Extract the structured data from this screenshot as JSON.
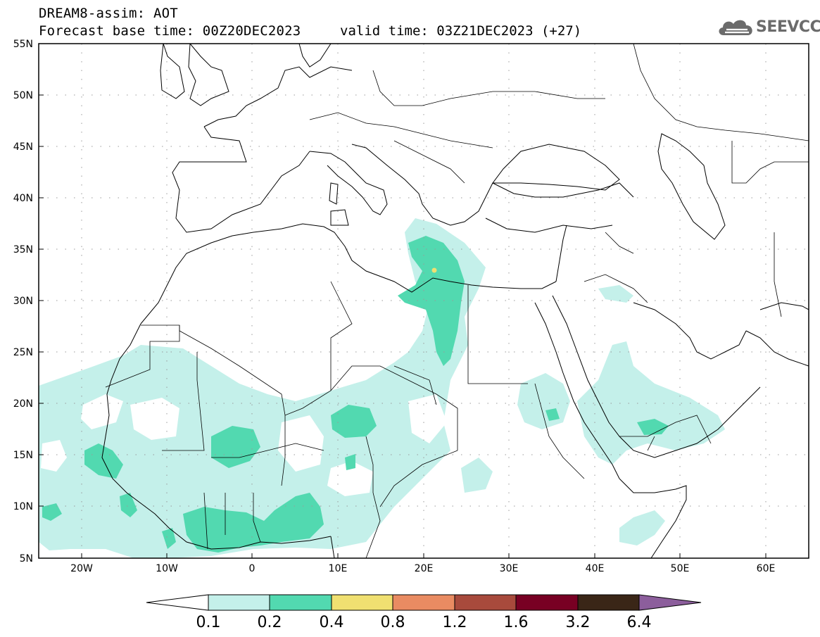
{
  "header": {
    "title": "DREAM8-assim: AOT",
    "base_time": "Forecast base time: 00Z20DEC2023",
    "valid_time": "valid time: 03Z21DEC2023 (+27)"
  },
  "logo": {
    "text": "SEEVCCC",
    "icon": "cloud-icon",
    "color": "#6b6b6b"
  },
  "map": {
    "lon_range": [
      -25,
      65
    ],
    "lat_range": [
      5,
      55
    ],
    "lat_labels": [
      "55N",
      "50N",
      "45N",
      "40N",
      "35N",
      "30N",
      "25N",
      "20N",
      "15N",
      "10N",
      "5N"
    ],
    "lon_labels": [
      "20W",
      "10W",
      "0",
      "10E",
      "20E",
      "30E",
      "40E",
      "50E",
      "60E"
    ]
  },
  "colorbar": {
    "labels": [
      "0.1",
      "0.2",
      "0.4",
      "0.8",
      "1.2",
      "1.6",
      "3.2",
      "6.4"
    ],
    "colors": [
      "#ffffff",
      "#c4f0ea",
      "#52d9b0",
      "#f0e071",
      "#e98b62",
      "#a84a3c",
      "#780023",
      "#3a2617",
      "#8c5e9c"
    ]
  }
}
